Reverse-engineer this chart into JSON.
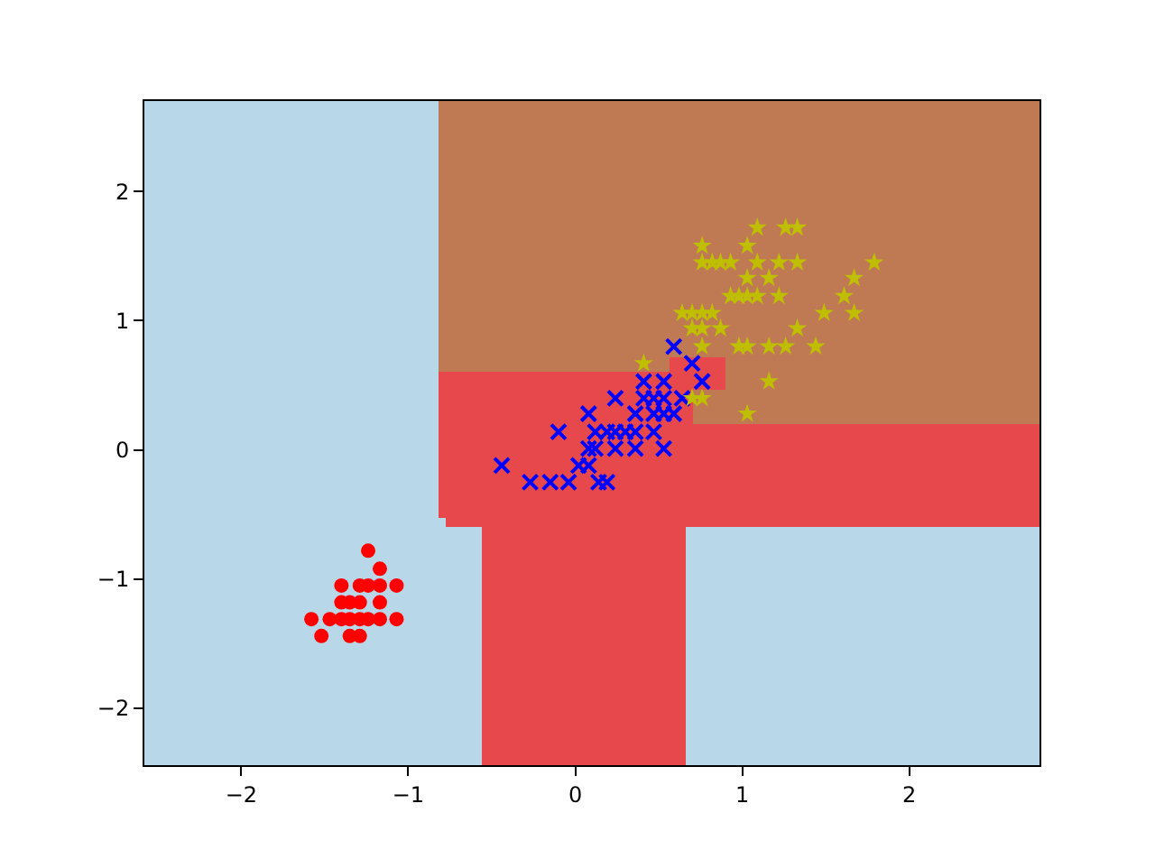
{
  "chart_data": {
    "type": "scatter",
    "xlim": [
      -2.58,
      2.78
    ],
    "ylim": [
      -2.44,
      2.7
    ],
    "xticks": [
      {
        "value": -2,
        "label": "−2"
      },
      {
        "value": -1,
        "label": "−1"
      },
      0,
      1,
      2
    ],
    "yticks": [
      {
        "value": -2,
        "label": "−2"
      },
      {
        "value": -1,
        "label": "−1"
      },
      0,
      1,
      2
    ],
    "x": [
      -1.7,
      -0.795,
      -0.665,
      0.0,
      0.61,
      0.68,
      0.8,
      1.84
    ],
    "series": [
      {
        "type": "bar",
        "color": "#b8d7e8",
        "values": [
          5.14,
          1.92,
          1.85,
          null,
          null,
          1.85,
          1.85,
          1.85
        ],
        "base": [
          -2.44,
          -2.44,
          -2.44,
          null,
          null,
          -2.44,
          -2.44,
          -2.44
        ]
      },
      {
        "type": "bar",
        "color": "#e6484b",
        "values": [
          null,
          1.12,
          1.19,
          3.04,
          3.15,
          1.3,
          0.79,
          0.79
        ],
        "base": [
          null,
          -0.52,
          -0.59,
          -2.44,
          -2.44,
          -0.59,
          -0.59,
          -0.59
        ]
      },
      {
        "type": "bar",
        "color": "#bf7a54",
        "values": [
          null,
          2.1,
          2.1,
          2.1,
          1.99,
          1.99,
          0.27,
          2.5
        ],
        "base": [
          null,
          0.6,
          0.6,
          0.6,
          0.71,
          0.71,
          0.2,
          0.2
        ]
      },
      {
        "type": "bar",
        "color": "#e6484b",
        "values": [
          null,
          null,
          null,
          null,
          null,
          null,
          0.24,
          null
        ],
        "base": [
          null,
          null,
          null,
          null,
          null,
          null,
          0.47,
          null
        ]
      },
      {
        "type": "bar",
        "color": "#bf7a54",
        "values": [
          null,
          null,
          null,
          null,
          null,
          null,
          1.99,
          null
        ],
        "base": [
          null,
          null,
          null,
          null,
          null,
          null,
          0.71,
          null
        ]
      },
      {
        "color": "#ff0000",
        "marker": "circle",
        "x": [
          -1.24,
          -1.17,
          -1.4,
          -1.29,
          -1.24,
          -1.17,
          -1.07,
          -1.4,
          -1.35,
          -1.29,
          -1.17,
          -1.58,
          -1.47,
          -1.4,
          -1.35,
          -1.29,
          -1.24,
          -1.17,
          -1.07,
          -1.52,
          -1.35,
          -1.29
        ],
        "values": [
          -0.78,
          -0.92,
          -1.05,
          -1.05,
          -1.05,
          -1.05,
          -1.05,
          -1.18,
          -1.18,
          -1.18,
          -1.18,
          -1.31,
          -1.31,
          -1.31,
          -1.31,
          -1.31,
          -1.31,
          -1.31,
          -1.31,
          -1.44,
          -1.44,
          -1.44
        ]
      },
      {
        "color": "#0000ff",
        "marker": "cross",
        "x": [
          0.59,
          0.7,
          0.76,
          0.41,
          0.53,
          0.24,
          0.41,
          0.47,
          0.53,
          0.64,
          0.08,
          0.36,
          0.47,
          0.53,
          0.59,
          -0.1,
          0.12,
          0.19,
          0.24,
          0.3,
          0.36,
          0.47,
          0.08,
          0.12,
          0.24,
          0.36,
          0.53,
          -0.44,
          0.02,
          0.08,
          -0.27,
          -0.15,
          -0.04,
          0.14,
          0.19
        ],
        "values": [
          0.8,
          0.67,
          0.53,
          0.53,
          0.53,
          0.4,
          0.4,
          0.4,
          0.4,
          0.4,
          0.28,
          0.28,
          0.28,
          0.28,
          0.28,
          0.14,
          0.14,
          0.14,
          0.14,
          0.14,
          0.14,
          0.14,
          0.01,
          0.01,
          0.01,
          0.01,
          0.01,
          -0.12,
          -0.12,
          -0.12,
          -0.25,
          -0.25,
          -0.25,
          -0.25,
          -0.25
        ]
      },
      {
        "color": "#bfbf00",
        "marker": "star",
        "x": [
          1.09,
          1.26,
          1.33,
          0.76,
          1.03,
          0.76,
          0.82,
          0.87,
          0.93,
          1.09,
          1.22,
          1.33,
          1.79,
          1.03,
          1.16,
          1.67,
          0.93,
          0.98,
          1.03,
          1.09,
          1.22,
          1.61,
          0.64,
          0.7,
          0.76,
          0.82,
          1.49,
          1.67,
          0.7,
          0.76,
          0.87,
          1.33,
          0.76,
          0.98,
          1.03,
          1.16,
          1.26,
          1.44,
          0.41,
          1.16,
          0.7,
          0.76,
          1.03
        ],
        "values": [
          1.72,
          1.72,
          1.72,
          1.58,
          1.58,
          1.45,
          1.45,
          1.45,
          1.45,
          1.45,
          1.45,
          1.45,
          1.45,
          1.33,
          1.33,
          1.33,
          1.19,
          1.19,
          1.19,
          1.19,
          1.19,
          1.19,
          1.06,
          1.06,
          1.06,
          1.06,
          1.06,
          1.06,
          0.94,
          0.94,
          0.94,
          0.94,
          0.8,
          0.8,
          0.8,
          0.8,
          0.8,
          0.8,
          0.67,
          0.53,
          0.4,
          0.4,
          0.28
        ]
      }
    ]
  }
}
